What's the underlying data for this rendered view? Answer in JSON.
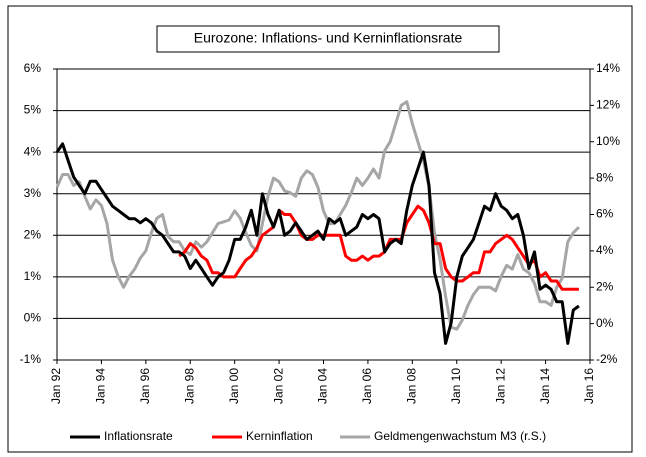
{
  "chart_data": {
    "type": "line",
    "title": "Eurozone: Inflations- und Kerninflationsrate",
    "x": [
      "1992-01",
      "1992-04",
      "1992-07",
      "1992-10",
      "1993-01",
      "1993-04",
      "1993-07",
      "1993-10",
      "1994-01",
      "1994-04",
      "1994-07",
      "1994-10",
      "1995-01",
      "1995-04",
      "1995-07",
      "1995-10",
      "1996-01",
      "1996-04",
      "1996-07",
      "1996-10",
      "1997-01",
      "1997-04",
      "1997-07",
      "1997-10",
      "1998-01",
      "1998-04",
      "1998-07",
      "1998-10",
      "1999-01",
      "1999-04",
      "1999-07",
      "1999-10",
      "2000-01",
      "2000-04",
      "2000-07",
      "2000-10",
      "2001-01",
      "2001-04",
      "2001-07",
      "2001-10",
      "2002-01",
      "2002-04",
      "2002-07",
      "2002-10",
      "2003-01",
      "2003-04",
      "2003-07",
      "2003-10",
      "2004-01",
      "2004-04",
      "2004-07",
      "2004-10",
      "2005-01",
      "2005-04",
      "2005-07",
      "2005-10",
      "2006-01",
      "2006-04",
      "2006-07",
      "2006-10",
      "2007-01",
      "2007-04",
      "2007-07",
      "2007-10",
      "2008-01",
      "2008-04",
      "2008-07",
      "2008-10",
      "2009-01",
      "2009-04",
      "2009-07",
      "2009-10",
      "2010-01",
      "2010-04",
      "2010-07",
      "2010-10",
      "2011-01",
      "2011-04",
      "2011-07",
      "2011-10",
      "2012-01",
      "2012-04",
      "2012-07",
      "2012-10",
      "2013-01",
      "2013-04",
      "2013-07",
      "2013-10",
      "2014-01",
      "2014-04",
      "2014-07",
      "2014-10",
      "2015-01",
      "2015-04",
      "2015-07"
    ],
    "series": [
      {
        "name": "Inflationsrate",
        "color": "#000000",
        "values": [
          4.0,
          4.2,
          3.8,
          3.4,
          3.2,
          3.0,
          3.3,
          3.3,
          3.1,
          2.9,
          2.7,
          2.6,
          2.5,
          2.4,
          2.4,
          2.3,
          2.4,
          2.3,
          2.1,
          2.0,
          1.8,
          1.6,
          1.6,
          1.5,
          1.2,
          1.4,
          1.2,
          1.0,
          0.8,
          1.0,
          1.1,
          1.4,
          1.9,
          1.9,
          2.2,
          2.6,
          2.0,
          3.0,
          2.5,
          2.2,
          2.6,
          2.0,
          2.1,
          2.3,
          2.1,
          1.9,
          2.0,
          2.1,
          1.9,
          2.4,
          2.3,
          2.4,
          2.0,
          2.1,
          2.2,
          2.5,
          2.4,
          2.5,
          2.4,
          1.6,
          1.8,
          1.9,
          1.8,
          2.6,
          3.2,
          3.6,
          4.0,
          3.2,
          1.1,
          0.6,
          -0.6,
          -0.1,
          1.0,
          1.5,
          1.7,
          1.9,
          2.3,
          2.7,
          2.6,
          3.0,
          2.7,
          2.6,
          2.4,
          2.5,
          2.0,
          1.2,
          1.6,
          0.7,
          0.8,
          0.7,
          0.4,
          0.4,
          -0.6,
          0.2,
          0.3
        ]
      },
      {
        "name": "Kerninflation",
        "color": "#ff0000",
        "values": [
          null,
          null,
          null,
          null,
          null,
          null,
          null,
          null,
          null,
          null,
          null,
          null,
          null,
          null,
          null,
          null,
          null,
          null,
          null,
          null,
          null,
          null,
          1.5,
          1.6,
          1.8,
          1.7,
          1.5,
          1.4,
          1.1,
          1.1,
          1.0,
          1.0,
          1.0,
          1.2,
          1.4,
          1.5,
          1.7,
          2.0,
          2.1,
          2.2,
          2.6,
          2.5,
          2.5,
          2.3,
          2.0,
          1.9,
          1.9,
          2.0,
          2.0,
          2.0,
          2.0,
          2.0,
          1.5,
          1.4,
          1.4,
          1.5,
          1.4,
          1.5,
          1.5,
          1.6,
          1.9,
          1.9,
          1.9,
          2.3,
          2.5,
          2.7,
          2.6,
          2.3,
          1.8,
          1.8,
          1.2,
          1.0,
          0.9,
          0.9,
          1.0,
          1.1,
          1.1,
          1.6,
          1.6,
          1.8,
          1.9,
          2.0,
          1.9,
          1.7,
          1.5,
          1.3,
          1.4,
          1.0,
          1.1,
          0.9,
          0.9,
          0.7,
          0.7,
          0.7,
          0.7
        ]
      },
      {
        "name": "Geldmengenwachstum M3 (r.S.)",
        "color": "#a6a6a6",
        "axis": "y2",
        "values": [
          7.5,
          8.2,
          8.2,
          7.6,
          7.8,
          7.0,
          6.3,
          6.8,
          6.5,
          5.5,
          3.5,
          2.6,
          2.0,
          2.6,
          3.0,
          3.6,
          4.0,
          5.0,
          5.8,
          6.0,
          4.8,
          4.5,
          4.5,
          4.0,
          3.8,
          4.5,
          4.2,
          4.5,
          5.0,
          5.5,
          5.6,
          5.7,
          6.2,
          5.8,
          5.0,
          4.3,
          4.0,
          5.5,
          7.0,
          8.0,
          7.8,
          7.3,
          7.2,
          7.0,
          8.0,
          8.4,
          8.2,
          7.5,
          6.2,
          5.5,
          5.5,
          6.0,
          6.5,
          7.2,
          8.0,
          7.6,
          8.0,
          8.5,
          8.0,
          9.5,
          10.0,
          11.0,
          12.0,
          12.2,
          11.0,
          10.0,
          9.0,
          7.5,
          5.0,
          3.5,
          1.5,
          -0.2,
          -0.3,
          0.2,
          1.0,
          1.6,
          2.0,
          2.0,
          2.0,
          1.8,
          2.6,
          3.2,
          3.0,
          3.8,
          3.0,
          2.8,
          2.2,
          1.2,
          1.2,
          1.0,
          2.0,
          2.5,
          4.5,
          5.0,
          5.3
        ]
      }
    ],
    "xlim": [
      "1992-01",
      "2016-01"
    ],
    "xticks": [
      {
        "value": "1992-01",
        "label": "Jan 92"
      },
      {
        "value": "1994-01",
        "label": "Jan 94"
      },
      {
        "value": "1996-01",
        "label": "Jan 96"
      },
      {
        "value": "1998-01",
        "label": "Jan 98"
      },
      {
        "value": "2000-01",
        "label": "Jan 00"
      },
      {
        "value": "2002-01",
        "label": "Jan 02"
      },
      {
        "value": "2004-01",
        "label": "Jan 04"
      },
      {
        "value": "2006-01",
        "label": "Jan 06"
      },
      {
        "value": "2008-01",
        "label": "Jan 08"
      },
      {
        "value": "2010-01",
        "label": "Jan 10"
      },
      {
        "value": "2012-01",
        "label": "Jan 12"
      },
      {
        "value": "2014-01",
        "label": "Jan 14"
      },
      {
        "value": "2016-01",
        "label": "Jan 16"
      }
    ],
    "ylim": [
      -1,
      6
    ],
    "yticks": [
      {
        "value": -1,
        "label": "-1%"
      },
      {
        "value": 0,
        "label": "0%"
      },
      {
        "value": 1,
        "label": "1%"
      },
      {
        "value": 2,
        "label": "2%"
      },
      {
        "value": 3,
        "label": "3%"
      },
      {
        "value": 4,
        "label": "4%"
      },
      {
        "value": 5,
        "label": "5%"
      },
      {
        "value": 6,
        "label": "6%"
      }
    ],
    "y2lim": [
      -2,
      14
    ],
    "y2ticks": [
      {
        "value": -2,
        "label": "-2%"
      },
      {
        "value": 0,
        "label": "0%"
      },
      {
        "value": 2,
        "label": "2%"
      },
      {
        "value": 4,
        "label": "4%"
      },
      {
        "value": 6,
        "label": "6%"
      },
      {
        "value": 8,
        "label": "8%"
      },
      {
        "value": 10,
        "label": "10%"
      },
      {
        "value": 12,
        "label": "12%"
      },
      {
        "value": 14,
        "label": "14%"
      }
    ],
    "grid": true,
    "legend": "bottom"
  }
}
